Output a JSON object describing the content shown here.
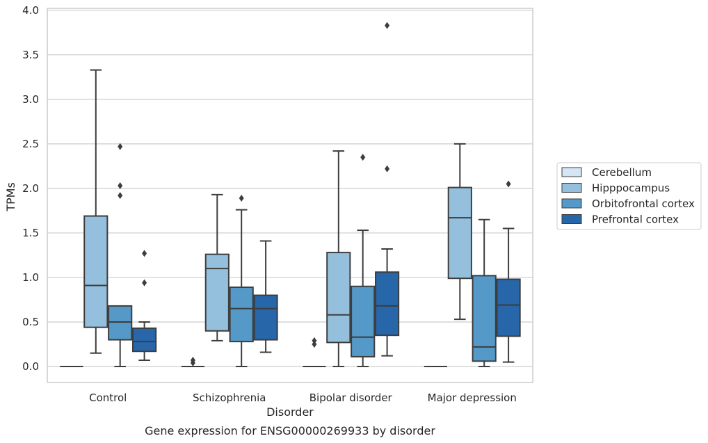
{
  "chart_data": {
    "type": "box",
    "title": "",
    "caption": "Gene expression for ENSG00000269933 by disorder",
    "xlabel": "Disorder",
    "ylabel": "TPMs",
    "ylim": [
      -0.18,
      4.03
    ],
    "yticks": [
      "0.0",
      "0.5",
      "1.0",
      "1.5",
      "2.0",
      "2.5",
      "3.0",
      "3.5",
      "4.0"
    ],
    "grid": "horizontal",
    "legend_position": "right",
    "categories": [
      "Control",
      "Schizophrenia",
      "Bipolar disorder",
      "Major depression"
    ],
    "series": [
      {
        "name": "Cerebellum",
        "color": "#d6e5f3",
        "boxes": [
          {
            "q1": 0,
            "median": 0,
            "q3": 0,
            "low": 0,
            "high": 0,
            "outliers": []
          },
          {
            "q1": 0,
            "median": 0,
            "q3": 0,
            "low": 0,
            "high": 0,
            "outliers": [
              0.04,
              0.07
            ]
          },
          {
            "q1": 0,
            "median": 0,
            "q3": 0,
            "low": 0,
            "high": 0,
            "outliers": [
              0.25,
              0.29
            ]
          },
          {
            "q1": 0,
            "median": 0,
            "q3": 0,
            "low": 0,
            "high": 0,
            "outliers": []
          }
        ]
      },
      {
        "name": "Hipppocampus",
        "color": "#94c0dd",
        "boxes": [
          {
            "q1": 0.44,
            "median": 0.91,
            "q3": 1.69,
            "low": 0.15,
            "high": 3.33,
            "outliers": []
          },
          {
            "q1": 0.4,
            "median": 1.1,
            "q3": 1.26,
            "low": 0.29,
            "high": 1.93,
            "outliers": []
          },
          {
            "q1": 0.27,
            "median": 0.58,
            "q3": 1.28,
            "low": 0.0,
            "high": 2.42,
            "outliers": []
          },
          {
            "q1": 0.99,
            "median": 1.67,
            "q3": 2.01,
            "low": 0.53,
            "high": 2.5,
            "outliers": []
          }
        ]
      },
      {
        "name": "Orbitofrontal cortex",
        "color": "#5499c8",
        "boxes": [
          {
            "q1": 0.3,
            "median": 0.5,
            "q3": 0.68,
            "low": 0.0,
            "high": 0.68,
            "outliers": [
              1.92,
              2.03,
              2.47
            ]
          },
          {
            "q1": 0.28,
            "median": 0.65,
            "q3": 0.89,
            "low": 0.0,
            "high": 1.76,
            "outliers": [
              1.89
            ]
          },
          {
            "q1": 0.11,
            "median": 0.33,
            "q3": 0.9,
            "low": 0.0,
            "high": 1.53,
            "outliers": [
              2.35
            ]
          },
          {
            "q1": 0.06,
            "median": 0.22,
            "q3": 1.02,
            "low": 0.0,
            "high": 1.65,
            "outliers": []
          }
        ]
      },
      {
        "name": "Prefrontal cortex",
        "color": "#2766a8",
        "boxes": [
          {
            "q1": 0.17,
            "median": 0.28,
            "q3": 0.43,
            "low": 0.07,
            "high": 0.5,
            "outliers": [
              0.94,
              1.27
            ]
          },
          {
            "q1": 0.3,
            "median": 0.65,
            "q3": 0.8,
            "low": 0.16,
            "high": 1.41,
            "outliers": []
          },
          {
            "q1": 0.35,
            "median": 0.68,
            "q3": 1.06,
            "low": 0.12,
            "high": 1.32,
            "outliers": [
              2.22,
              3.83
            ]
          },
          {
            "q1": 0.34,
            "median": 0.69,
            "q3": 0.98,
            "low": 0.05,
            "high": 1.55,
            "outliers": [
              2.05
            ]
          }
        ]
      }
    ]
  }
}
